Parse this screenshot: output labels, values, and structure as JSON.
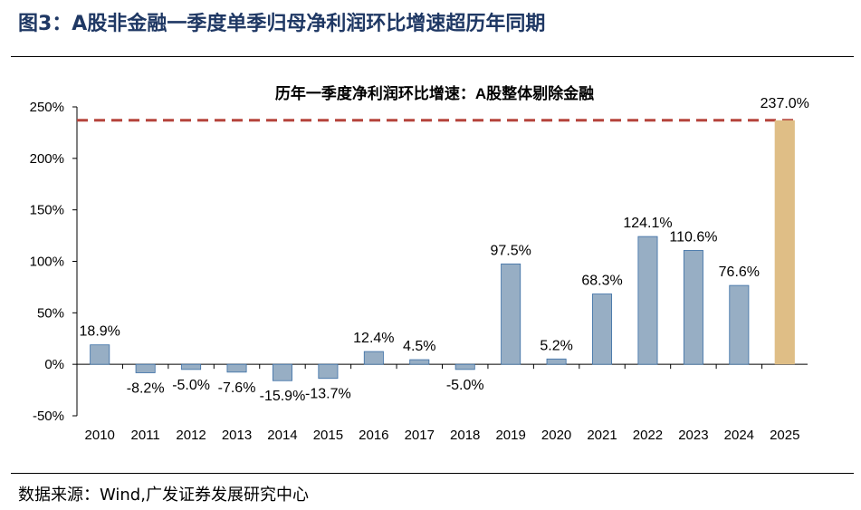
{
  "figure": {
    "title": "图3：A股非金融一季度单季归母净利润环比增速超历年同期",
    "source": "数据来源：Wind,广发证券发展研究中心"
  },
  "chart_data": {
    "type": "bar",
    "title": "历年一季度净利润环比增速：A股整体剔除金融",
    "categories": [
      "2010",
      "2011",
      "2012",
      "2013",
      "2014",
      "2015",
      "2016",
      "2017",
      "2018",
      "2019",
      "2020",
      "2021",
      "2022",
      "2023",
      "2024",
      "2025"
    ],
    "values": [
      18.9,
      -8.2,
      -5.0,
      -7.6,
      -15.9,
      -13.7,
      12.4,
      4.5,
      -5.0,
      97.5,
      5.2,
      68.3,
      124.1,
      110.6,
      76.6,
      237.0
    ],
    "data_labels": [
      "18.9%",
      "-8.2%",
      "-5.0%",
      "-7.6%",
      "-15.9%",
      "-13.7%",
      "12.4%",
      "4.5%",
      "-5.0%",
      "97.5%",
      "5.2%",
      "68.3%",
      "124.1%",
      "110.6%",
      "76.6%",
      "237.0%"
    ],
    "y_ticks": [
      "-50%",
      "0%",
      "50%",
      "100%",
      "150%",
      "200%",
      "250%"
    ],
    "ylim": [
      -50,
      250
    ],
    "reference_line": {
      "value": 237.0,
      "style": "dashed",
      "color": "#b5443c"
    },
    "colors": {
      "bar": "#97aec4",
      "bar_edge": "#3a6ea5",
      "highlight_bar": "#dfbe86",
      "highlight_category": "2025"
    },
    "grid": false,
    "legend": "none"
  }
}
